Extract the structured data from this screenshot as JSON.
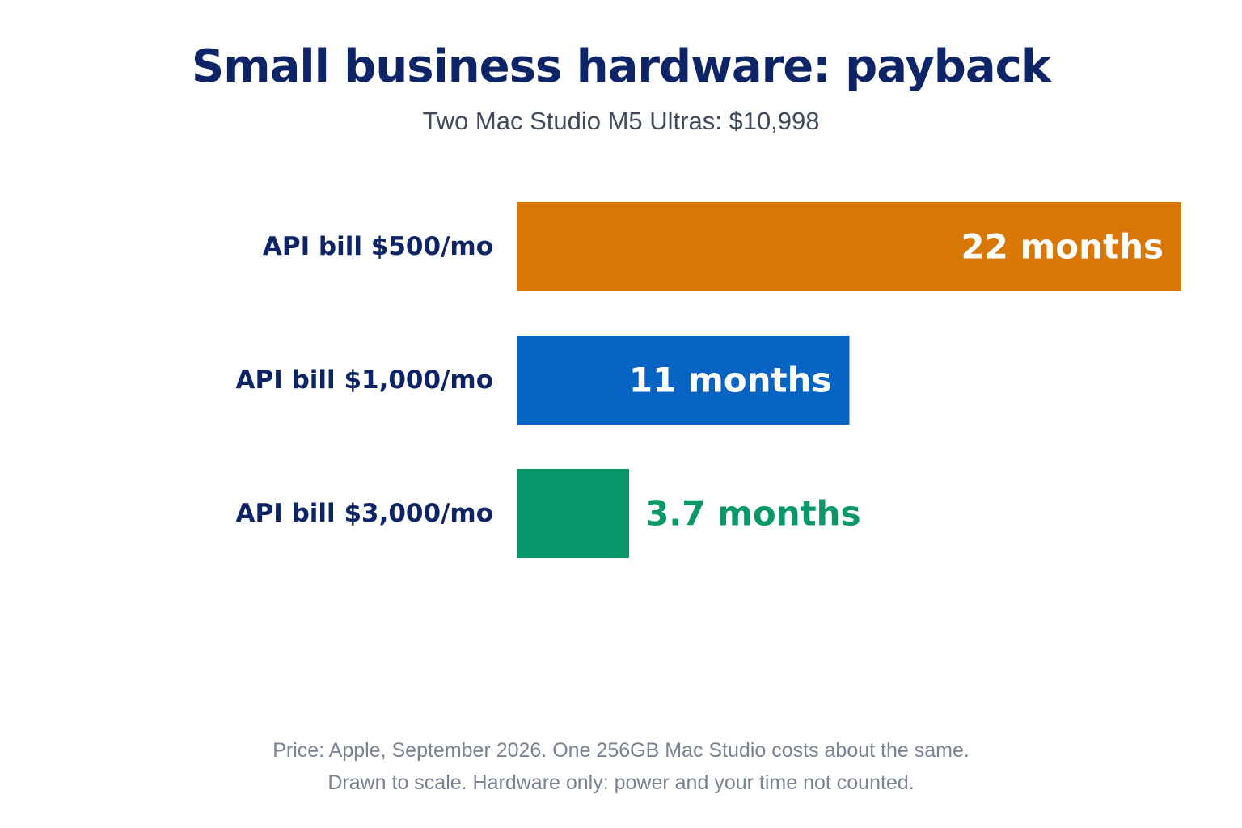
{
  "chart_data": {
    "type": "bar",
    "orientation": "horizontal",
    "title": "Small business hardware: payback",
    "subtitle": "Two Mac Studio M5 Ultras: $10,998",
    "categories": [
      "API bill $500/mo",
      "API bill $1,000/mo",
      "API bill $3,000/mo"
    ],
    "values": [
      22,
      11,
      3.7
    ],
    "value_labels": [
      "22 months",
      "11 months",
      "3.7 months"
    ],
    "colors": [
      "#d97706",
      "#0763c4",
      "#07976a"
    ],
    "value_label_colors": [
      "#ffffff",
      "#ffffff",
      "#07976a"
    ],
    "value_label_position": [
      "inside-end",
      "inside-end",
      "outside-end"
    ],
    "xlim": [
      0,
      22
    ],
    "grid": false,
    "legend": "none"
  },
  "footnotes": [
    "Price: Apple, September 2026. One 256GB Mac Studio costs about the same.",
    "Drawn to scale. Hardware only: power and your time not counted."
  ],
  "colors": {
    "title": "#0d2466",
    "category_label": "#0d2466",
    "subtitle": "#3f4a5c",
    "footnote": "#7a8294"
  }
}
